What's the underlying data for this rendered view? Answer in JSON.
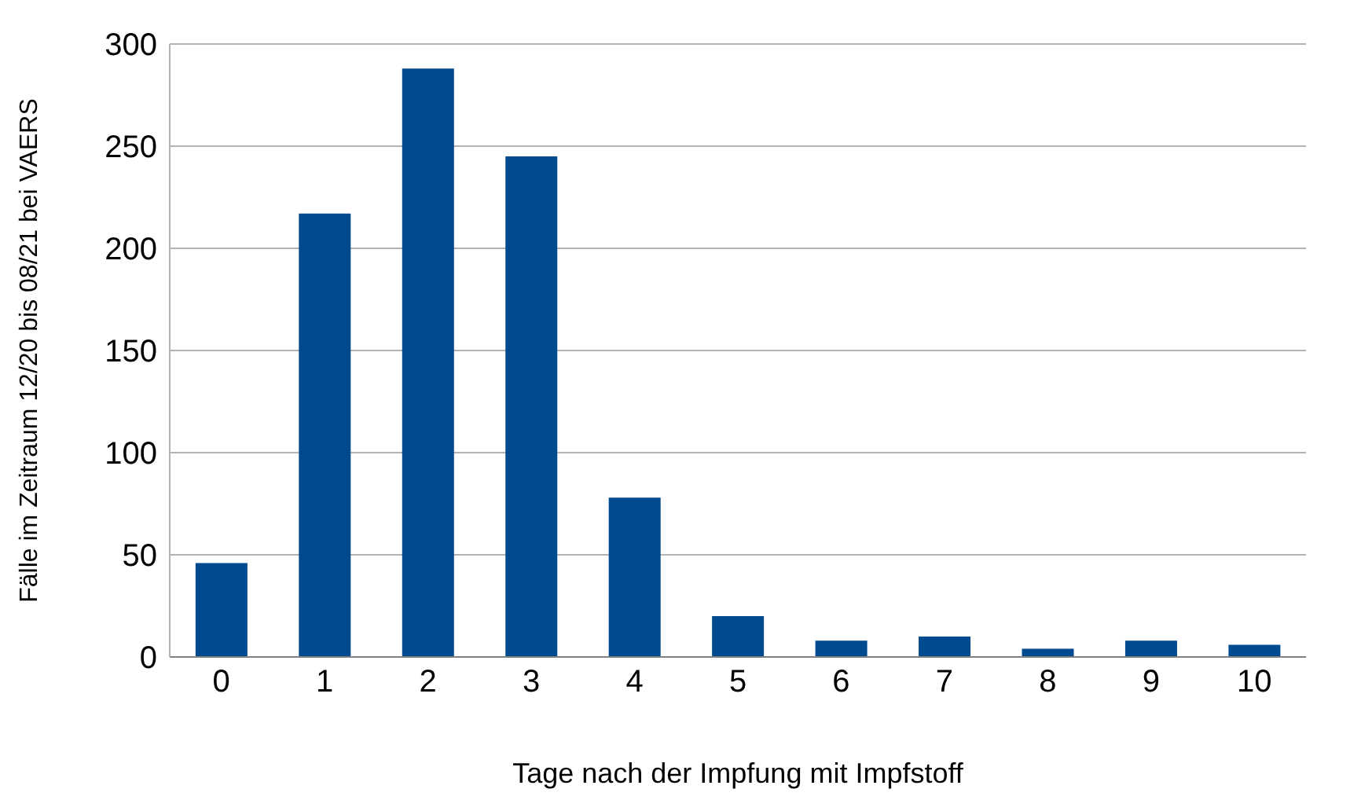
{
  "chart_data": {
    "type": "bar",
    "xlabel": "Tage nach der Impfung mit Impfstoff",
    "ylabel": "Fälle im Zeitraum 12/20 bis 08/21 bei VAERS",
    "categories": [
      "0",
      "1",
      "2",
      "3",
      "4",
      "5",
      "6",
      "7",
      "8",
      "9",
      "10"
    ],
    "values": [
      46,
      217,
      288,
      245,
      78,
      20,
      8,
      10,
      4,
      8,
      6
    ],
    "color": "#004a8f",
    "ylim": [
      0,
      300
    ],
    "yticks": [
      0,
      50,
      100,
      150,
      200,
      250,
      300
    ],
    "grid": "y"
  }
}
